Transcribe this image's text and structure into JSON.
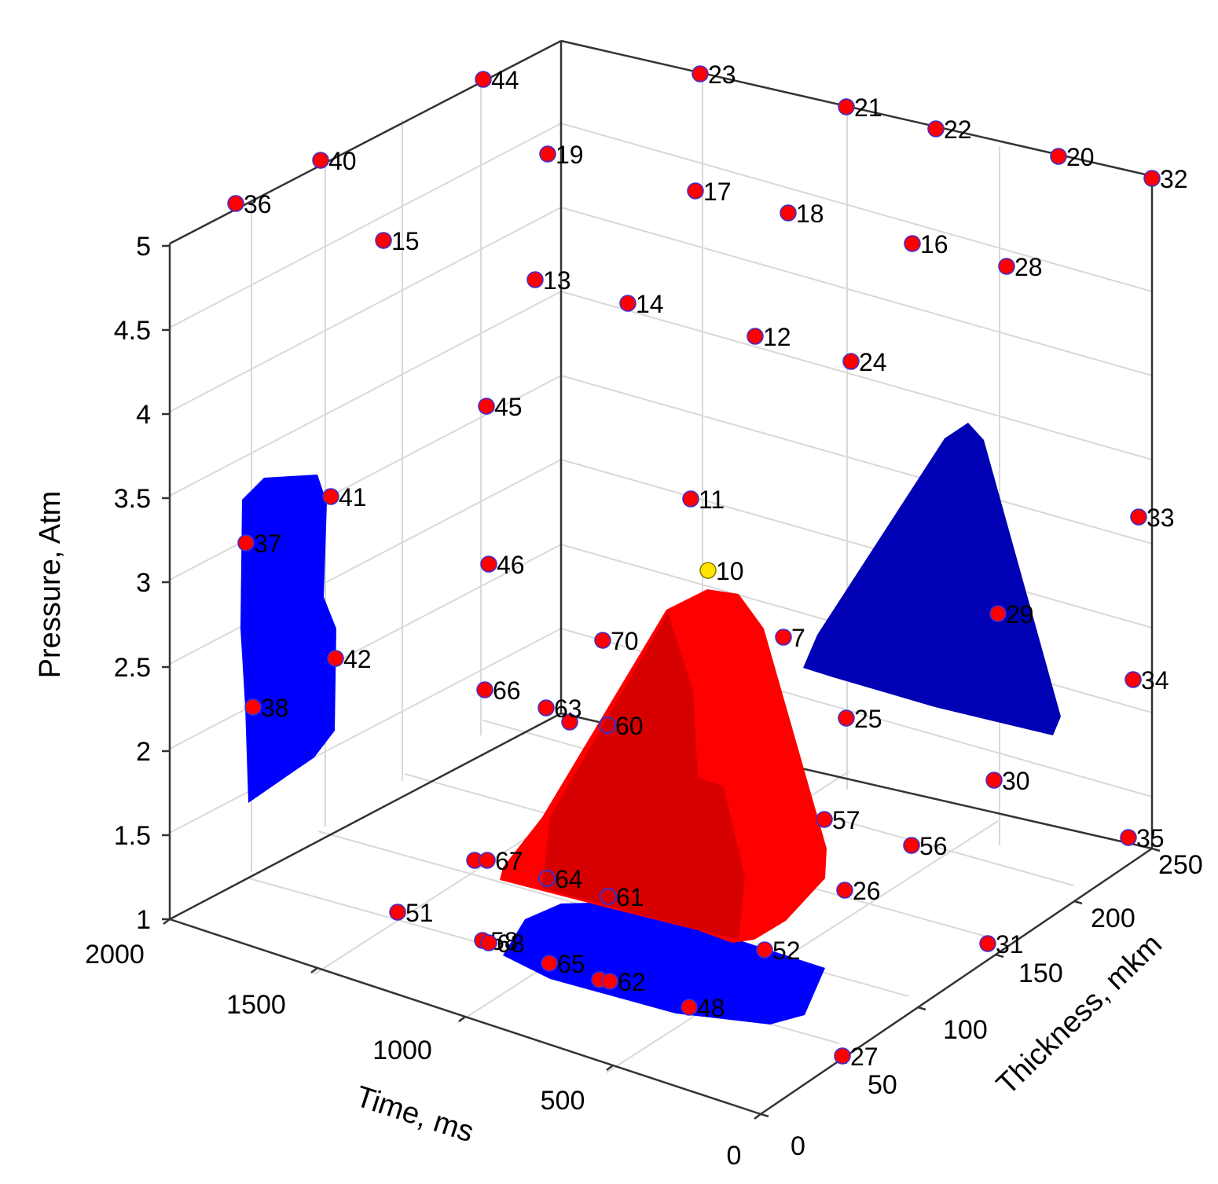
{
  "chart_data": {
    "type": "scatter3d",
    "axes": {
      "x": {
        "label": "Time, ms",
        "ticks": [
          "0",
          "500",
          "1000",
          "1500",
          "2000"
        ],
        "range": [
          0,
          2000
        ]
      },
      "y": {
        "label": "Thickness, mkm",
        "ticks": [
          "0",
          "50",
          "100",
          "150",
          "200",
          "250"
        ],
        "range": [
          0,
          250
        ]
      },
      "z": {
        "label": "Pressure, Atm",
        "ticks": [
          "1",
          "1.5",
          "2",
          "2.5",
          "3",
          "3.5",
          "4",
          "4.5",
          "5"
        ],
        "range": [
          1,
          5
        ]
      }
    },
    "grid": true,
    "colors": {
      "point": "#ff0000",
      "point_edge": "#3b2fd6",
      "highlight": "#ffe400",
      "region_red": "#ff0000",
      "region_red_dark": "#d60000",
      "region_blue": "#0000ff",
      "region_navy": "#0000b4"
    },
    "points": [
      {
        "label": "44"
      },
      {
        "label": "23"
      },
      {
        "label": "21"
      },
      {
        "label": "22"
      },
      {
        "label": "20"
      },
      {
        "label": "32"
      },
      {
        "label": "40"
      },
      {
        "label": "36"
      },
      {
        "label": "19"
      },
      {
        "label": "17"
      },
      {
        "label": "18"
      },
      {
        "label": "15"
      },
      {
        "label": "16"
      },
      {
        "label": "28"
      },
      {
        "label": "13"
      },
      {
        "label": "14"
      },
      {
        "label": "12"
      },
      {
        "label": "24"
      },
      {
        "label": "45"
      },
      {
        "label": "41"
      },
      {
        "label": "11"
      },
      {
        "label": "33"
      },
      {
        "label": "37"
      },
      {
        "label": "46"
      },
      {
        "label": "10",
        "highlight": true
      },
      {
        "label": "29"
      },
      {
        "label": "70"
      },
      {
        "label": "7"
      },
      {
        "label": "42"
      },
      {
        "label": "34"
      },
      {
        "label": "66"
      },
      {
        "label": "38"
      },
      {
        "label": "63"
      },
      {
        "label": "60",
        "hollow": true
      },
      {
        "label": "25"
      },
      {
        "label": "30"
      },
      {
        "label": "57"
      },
      {
        "label": "35"
      },
      {
        "label": "67"
      },
      {
        "label": "56"
      },
      {
        "label": "64",
        "hollow": true
      },
      {
        "label": "26"
      },
      {
        "label": "61",
        "hollow": true
      },
      {
        "label": "51"
      },
      {
        "label": "52"
      },
      {
        "label": "58"
      },
      {
        "label": "68"
      },
      {
        "label": "31"
      },
      {
        "label": "65"
      },
      {
        "label": "62"
      },
      {
        "label": "48"
      },
      {
        "label": "27"
      }
    ]
  }
}
